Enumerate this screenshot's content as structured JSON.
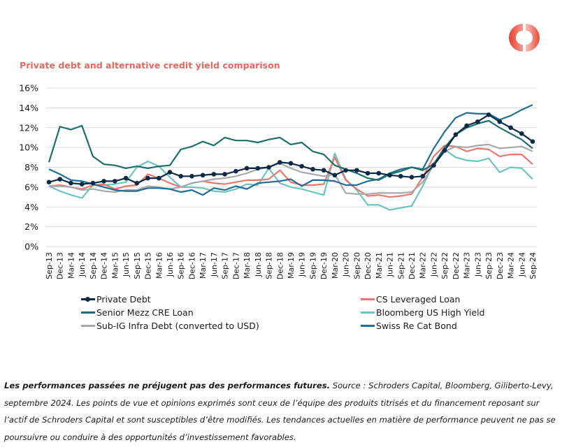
{
  "logo": {
    "name": "schroders-ring-logo",
    "color": "#e84d3d"
  },
  "chart_data": {
    "type": "line",
    "title": "Private debt and alternative credit yield comparison",
    "xlabel": "",
    "ylabel": "",
    "ylim": [
      0,
      16
    ],
    "yticks": [
      "0%",
      "2%",
      "4%",
      "6%",
      "8%",
      "10%",
      "12%",
      "14%",
      "16%"
    ],
    "grid": true,
    "legend_position": "bottom",
    "x": [
      "Sep-13",
      "Dec-13",
      "Mar-14",
      "Jun-14",
      "Sep-14",
      "Dec-14",
      "Mar-15",
      "Jun-15",
      "Sep-15",
      "Dec-15",
      "Mar-16",
      "Jun-16",
      "Sep-16",
      "Dec-16",
      "Mar-17",
      "Jun-17",
      "Sep-17",
      "Dec-17",
      "Mar-18",
      "Jun-18",
      "Sep-18",
      "Dec-18",
      "Mar-19",
      "Jun-19",
      "Sep-19",
      "Dec-19",
      "Mar-20",
      "Jun-20",
      "Sep-20",
      "Dec-20",
      "Mar-21",
      "Jun-21",
      "Sep-21",
      "Dec-21",
      "Mar-22",
      "Jun-22",
      "Sep-22",
      "Dec-22",
      "Mar-23",
      "Jun-23",
      "Sep-23",
      "Dec-23",
      "Mar-24",
      "Jun-24",
      "Sep-24"
    ],
    "series": [
      {
        "name": "Private Debt",
        "color": "#0d2a45",
        "markers": true,
        "values": [
          6.5,
          6.8,
          6.4,
          6.3,
          6.4,
          6.6,
          6.6,
          6.9,
          6.4,
          6.9,
          6.9,
          7.5,
          7.1,
          7.1,
          7.2,
          7.3,
          7.3,
          7.6,
          7.9,
          7.9,
          8.0,
          8.5,
          8.4,
          8.1,
          7.8,
          7.7,
          7.2,
          7.7,
          7.7,
          7.4,
          7.4,
          7.2,
          7.1,
          7.0,
          7.1,
          8.2,
          9.7,
          11.3,
          12.2,
          12.6,
          13.3,
          12.6,
          12.0,
          11.4,
          10.6
        ]
      },
      {
        "name": "CS Leveraged Loan",
        "color": "#e8776f",
        "markers": false,
        "values": [
          6.1,
          6.2,
          6.0,
          5.8,
          6.2,
          6.3,
          5.8,
          6.1,
          6.2,
          7.3,
          6.9,
          6.4,
          6.0,
          6.4,
          6.6,
          6.4,
          6.3,
          6.5,
          6.7,
          6.7,
          6.8,
          7.7,
          6.5,
          6.2,
          6.2,
          6.3,
          9.0,
          6.7,
          5.8,
          5.1,
          5.2,
          5.0,
          5.1,
          5.3,
          7.0,
          9.1,
          10.2,
          10.1,
          9.6,
          9.9,
          9.8,
          9.1,
          9.3,
          9.3,
          8.3
        ]
      },
      {
        "name": "Senior Mezz CRE Loan",
        "color": "#1f6e6a",
        "markers": false,
        "values": [
          8.5,
          12.1,
          11.8,
          12.2,
          9.1,
          8.3,
          8.2,
          7.9,
          8.1,
          7.9,
          8.1,
          8.2,
          9.8,
          10.1,
          10.6,
          10.2,
          11.0,
          10.7,
          10.7,
          10.5,
          10.8,
          11.0,
          10.3,
          10.5,
          9.6,
          9.3,
          8.2,
          7.8,
          7.4,
          6.9,
          6.7,
          7.3,
          7.6,
          8.0,
          7.7,
          8.3,
          10.0,
          11.3,
          12.0,
          12.4,
          12.7,
          12.0,
          11.4,
          10.8,
          9.9
        ]
      },
      {
        "name": "Bloomberg US High Yield",
        "color": "#6cc4c0",
        "markers": false,
        "values": [
          6.1,
          5.6,
          5.2,
          4.9,
          6.2,
          6.2,
          6.3,
          6.5,
          8.0,
          8.6,
          8.1,
          7.0,
          6.0,
          6.0,
          5.9,
          5.6,
          5.5,
          5.8,
          6.3,
          6.2,
          7.9,
          6.4,
          6.0,
          5.8,
          5.5,
          5.2,
          9.4,
          6.8,
          5.7,
          4.2,
          4.2,
          3.7,
          3.9,
          4.1,
          6.1,
          8.4,
          9.8,
          9.0,
          8.7,
          8.6,
          8.9,
          7.5,
          8.0,
          7.9,
          6.8
        ]
      },
      {
        "name": "Sub-IG Infra Debt (converted to USD)",
        "color": "#a8a8a8",
        "markers": false,
        "values": [
          6.1,
          6.1,
          6.0,
          5.7,
          5.8,
          5.6,
          5.5,
          5.7,
          5.7,
          6.1,
          6.0,
          5.8,
          6.0,
          6.4,
          6.6,
          6.8,
          6.9,
          7.1,
          7.4,
          7.8,
          8.0,
          8.4,
          7.9,
          7.5,
          7.3,
          7.1,
          7.3,
          5.4,
          5.3,
          5.3,
          5.4,
          5.4,
          5.4,
          5.5,
          6.5,
          8.2,
          9.6,
          10.1,
          10.0,
          10.2,
          10.3,
          9.9,
          10.0,
          10.1,
          9.6
        ]
      },
      {
        "name": "Swiss Re Cat Bond",
        "color": "#1e6e96",
        "markers": false,
        "values": [
          7.8,
          7.3,
          6.7,
          6.6,
          6.3,
          6.0,
          5.7,
          5.6,
          5.6,
          5.9,
          5.9,
          5.8,
          5.5,
          5.7,
          5.2,
          5.9,
          5.7,
          6.1,
          5.8,
          6.4,
          6.5,
          6.6,
          6.8,
          6.1,
          6.7,
          6.7,
          6.6,
          6.2,
          6.2,
          6.6,
          6.8,
          7.4,
          7.8,
          8.0,
          7.8,
          9.9,
          11.6,
          13.0,
          13.5,
          13.4,
          13.4,
          12.8,
          13.2,
          13.8,
          14.3
        ]
      }
    ]
  },
  "legend": [
    {
      "label": "Private Debt"
    },
    {
      "label": "CS Leveraged Loan"
    },
    {
      "label": "Senior Mezz CRE Loan"
    },
    {
      "label": "Bloomberg US High Yield"
    },
    {
      "label": "Sub-IG Infra Debt (converted to USD)"
    },
    {
      "label": "Swiss Re Cat Bond"
    }
  ],
  "footnote": {
    "bold": "Les performances passées ne préjugent pas des performances futures.",
    "text": " Source : Schroders Capital, Bloomberg, Giliberto-Levy, septembre 2024. Les points de vue et opinions exprimés sont ceux de l’équipe des produits titrisés et du financement reposant sur l’actif de Schroders Capital et sont susceptibles d’être modifiés. Les tendances actuelles en matière de performance peuvent ne pas se poursuivre ou conduire à des opportunités d’investissement favorables."
  }
}
